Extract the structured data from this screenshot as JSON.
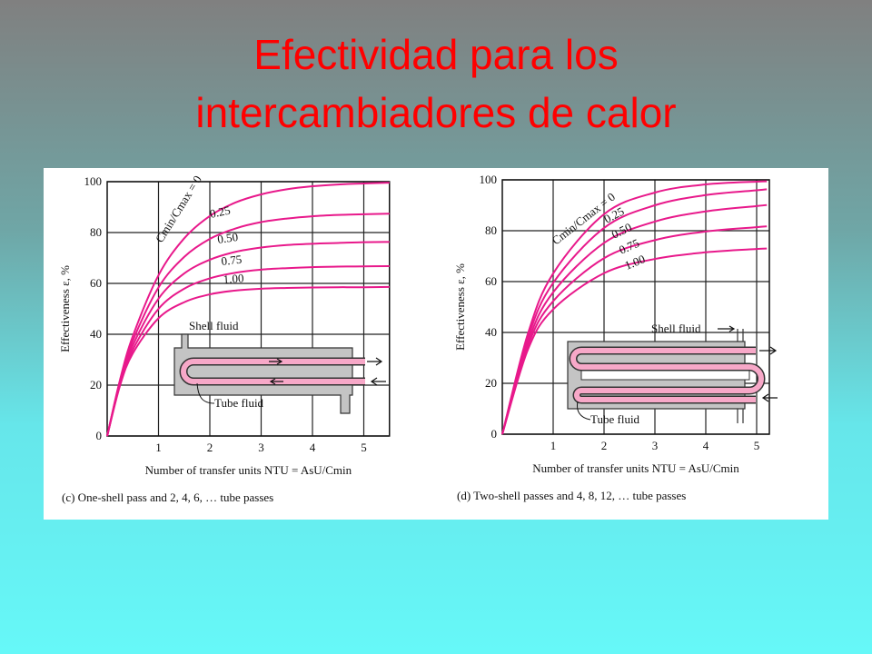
{
  "title": "Efectividad para los intercambiadores de calor",
  "chart_data": [
    {
      "type": "line",
      "caption": "(c) One-shell pass and 2, 4, 6, … tube passes",
      "xlabel": "Number of transfer units NTU = AsU/Cmin",
      "ylabel": "Effectiveness ε, %",
      "annotations": [
        "Shell fluid",
        "Tube fluid"
      ],
      "x": [
        0,
        0.25,
        0.5,
        1,
        1.5,
        2,
        2.5,
        3,
        3.5,
        4,
        4.5,
        5,
        5.5
      ],
      "series": [
        {
          "name": "Cmin/Cmax = 0",
          "color": "#e8198b",
          "values": [
            0,
            22.1,
            39.3,
            63.2,
            77.7,
            86.5,
            91.8,
            95.0,
            97.0,
            98.2,
            98.9,
            99.3,
            99.6
          ]
        },
        {
          "name": "0.25",
          "color": "#e8198b",
          "values": [
            0,
            21.5,
            37.5,
            58.4,
            70.4,
            77.5,
            81.6,
            84.1,
            85.5,
            86.4,
            86.9,
            87.2,
            87.4
          ]
        },
        {
          "name": "0.50",
          "color": "#e8198b",
          "values": [
            0,
            20.9,
            35.7,
            54.0,
            63.9,
            69.3,
            72.4,
            74.1,
            75.1,
            75.6,
            75.9,
            76.2,
            76.3
          ]
        },
        {
          "name": "0.75",
          "color": "#e8198b",
          "values": [
            0,
            20.4,
            34.0,
            50.0,
            57.9,
            62.0,
            64.2,
            65.4,
            66.0,
            66.4,
            66.6,
            66.7,
            66.8
          ]
        },
        {
          "name": "1.00",
          "color": "#e8198b",
          "values": [
            0,
            19.8,
            32.5,
            46.3,
            52.6,
            55.7,
            57.2,
            57.9,
            58.2,
            58.4,
            58.5,
            58.5,
            58.6
          ]
        }
      ],
      "xlim": [
        0,
        5.5
      ],
      "xticks": [
        1,
        2,
        3,
        4,
        5
      ],
      "ylim": [
        0,
        100
      ],
      "yticks": [
        0,
        20,
        40,
        60,
        80,
        100
      ],
      "grid": true
    },
    {
      "type": "line",
      "caption": "(d) Two-shell passes and 4, 8, 12, … tube passes",
      "xlabel": "Number of transfer units NTU = AsU/Cmin",
      "ylabel": "Effectiveness ε, %",
      "annotations": [
        "Shell fluid",
        "Tube fluid"
      ],
      "x": [
        0,
        0.5,
        1,
        2,
        3,
        4,
        5,
        5.2
      ],
      "series": [
        {
          "name": "Cmin/Cmax = 0",
          "color": "#e8198b",
          "values": [
            0,
            39.3,
            63.2,
            86.5,
            95.0,
            98.2,
            99.3,
            99.4
          ]
        },
        {
          "name": "0.25",
          "color": "#e8198b",
          "values": [
            0,
            37.7,
            59.5,
            81.1,
            90.0,
            94.0,
            95.9,
            96.3
          ]
        },
        {
          "name": "0.50",
          "color": "#e8198b",
          "values": [
            0,
            36.0,
            55.8,
            75.2,
            83.6,
            87.6,
            89.7,
            90.1
          ]
        },
        {
          "name": "0.75",
          "color": "#e8198b",
          "values": [
            0,
            34.6,
            52.3,
            69.2,
            76.3,
            79.7,
            81.4,
            81.7
          ]
        },
        {
          "name": "1.00",
          "color": "#e8198b",
          "values": [
            0,
            33.1,
            49.1,
            63.3,
            68.9,
            71.5,
            72.8,
            73.0
          ]
        }
      ],
      "xlim": [
        0,
        5.25
      ],
      "xticks": [
        1,
        2,
        3,
        4,
        5
      ],
      "ylim": [
        0,
        100
      ],
      "yticks": [
        0,
        20,
        40,
        60,
        80,
        100
      ],
      "grid": true
    }
  ]
}
